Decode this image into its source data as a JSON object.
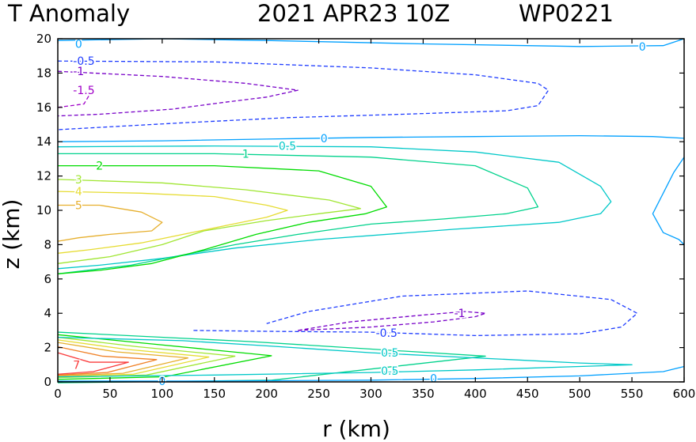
{
  "chart_data": {
    "type": "contour",
    "title": {
      "left": "T Anomaly",
      "date": "2021 APR23 10Z",
      "storm": "WP0221"
    },
    "xlabel": "r (km)",
    "ylabel": "z (km)",
    "xlim": [
      0,
      600
    ],
    "ylim": [
      0,
      20
    ],
    "xticks": [
      "0",
      "50",
      "100",
      "150",
      "200",
      "250",
      "300",
      "350",
      "400",
      "450",
      "500",
      "550",
      "600"
    ],
    "yticks": [
      "0",
      "2",
      "4",
      "6",
      "8",
      "10",
      "12",
      "14",
      "16",
      "18",
      "20"
    ],
    "levels": [
      {
        "value": -1.5,
        "label": "-1.5",
        "color": "#a000c8",
        "dashed": true
      },
      {
        "value": -1,
        "label": "-1",
        "color": "#7800c8",
        "dashed": true
      },
      {
        "value": -0.5,
        "label": "-0.5",
        "color": "#1e3cff",
        "dashed": true
      },
      {
        "value": 0,
        "label": "0",
        "color": "#00a0ff",
        "dashed": false
      },
      {
        "value": 0.5,
        "label": "0.5",
        "color": "#00c8c8",
        "dashed": false
      },
      {
        "value": 1,
        "label": "1",
        "color": "#00d28c",
        "dashed": false
      },
      {
        "value": 2,
        "label": "2",
        "color": "#00dc00",
        "dashed": false
      },
      {
        "value": 3,
        "label": "3",
        "color": "#a0e632",
        "dashed": false
      },
      {
        "value": 4,
        "label": "4",
        "color": "#e6dc32",
        "dashed": false
      },
      {
        "value": 5,
        "label": "5",
        "color": "#e6af2d",
        "dashed": false
      },
      {
        "value": 6,
        "label": "6",
        "color": "#f08228",
        "dashed": false
      },
      {
        "value": 7,
        "label": "7",
        "color": "#fa3c3c",
        "dashed": false
      }
    ],
    "contours": [
      {
        "level": "0",
        "points": [
          [
            0,
            19.9
          ],
          [
            100,
            20
          ],
          [
            200,
            19.9
          ],
          [
            350,
            19.7
          ],
          [
            500,
            19.55
          ],
          [
            580,
            19.6
          ],
          [
            600,
            20
          ]
        ]
      },
      {
        "level": "-0.5",
        "points": [
          [
            0,
            18.7
          ],
          [
            150,
            18.65
          ],
          [
            300,
            18.3
          ],
          [
            400,
            17.9
          ],
          [
            460,
            17.4
          ],
          [
            470,
            17.0
          ],
          [
            460,
            16.1
          ],
          [
            430,
            15.8
          ],
          [
            330,
            15.6
          ],
          [
            220,
            15.4
          ],
          [
            120,
            15.1
          ],
          [
            0,
            14.7
          ]
        ]
      },
      {
        "level": "-1",
        "points": [
          [
            0,
            18.1
          ],
          [
            100,
            17.8
          ],
          [
            180,
            17.4
          ],
          [
            230,
            17.0
          ],
          [
            200,
            16.6
          ],
          [
            160,
            16.3
          ],
          [
            110,
            15.9
          ],
          [
            40,
            15.6
          ],
          [
            0,
            15.5
          ]
        ]
      },
      {
        "level": "-1.5",
        "points": [
          [
            0,
            16.0
          ],
          [
            25,
            16.2
          ],
          [
            30,
            16.7
          ],
          [
            25,
            17.0
          ]
        ]
      },
      {
        "level": "0",
        "points": [
          [
            0,
            14.0
          ],
          [
            100,
            14.05
          ],
          [
            200,
            14.15
          ],
          [
            300,
            14.25
          ],
          [
            400,
            14.3
          ],
          [
            500,
            14.35
          ],
          [
            570,
            14.3
          ],
          [
            600,
            14.2
          ]
        ]
      },
      {
        "level": "0.5",
        "points": [
          [
            0,
            13.7
          ],
          [
            150,
            13.75
          ],
          [
            300,
            13.7
          ],
          [
            400,
            13.4
          ],
          [
            480,
            12.8
          ],
          [
            520,
            11.4
          ],
          [
            530,
            10.5
          ],
          [
            520,
            9.8
          ],
          [
            480,
            9.3
          ],
          [
            380,
            8.9
          ],
          [
            250,
            8.3
          ],
          [
            170,
            7.8
          ],
          [
            100,
            7.2
          ],
          [
            40,
            6.8
          ],
          [
            0,
            6.6
          ]
        ]
      },
      {
        "level": "1",
        "points": [
          [
            0,
            13.3
          ],
          [
            150,
            13.3
          ],
          [
            300,
            13.1
          ],
          [
            400,
            12.6
          ],
          [
            450,
            11.3
          ],
          [
            460,
            10.2
          ],
          [
            430,
            9.8
          ],
          [
            370,
            9.5
          ],
          [
            300,
            9.2
          ],
          [
            230,
            8.6
          ],
          [
            170,
            8.0
          ],
          [
            120,
            7.4
          ],
          [
            70,
            6.8
          ],
          [
            0,
            6.3
          ]
        ]
      },
      {
        "level": "2",
        "points": [
          [
            0,
            12.6
          ],
          [
            150,
            12.6
          ],
          [
            250,
            12.3
          ],
          [
            300,
            11.4
          ],
          [
            315,
            10.2
          ],
          [
            295,
            9.8
          ],
          [
            240,
            9.3
          ],
          [
            190,
            8.6
          ],
          [
            140,
            7.7
          ],
          [
            90,
            6.9
          ],
          [
            40,
            6.5
          ],
          [
            0,
            6.3
          ]
        ]
      },
      {
        "level": "3",
        "points": [
          [
            0,
            11.8
          ],
          [
            100,
            11.6
          ],
          [
            180,
            11.2
          ],
          [
            260,
            10.6
          ],
          [
            290,
            10.1
          ],
          [
            250,
            9.8
          ],
          [
            200,
            9.4
          ],
          [
            140,
            8.8
          ],
          [
            100,
            8.0
          ],
          [
            50,
            7.3
          ],
          [
            0,
            6.9
          ]
        ]
      },
      {
        "level": "4",
        "points": [
          [
            0,
            11.1
          ],
          [
            80,
            11.0
          ],
          [
            150,
            10.8
          ],
          [
            200,
            10.3
          ],
          [
            220,
            10.0
          ],
          [
            200,
            9.6
          ],
          [
            160,
            9.1
          ],
          [
            120,
            8.6
          ],
          [
            80,
            8.1
          ],
          [
            30,
            7.7
          ],
          [
            0,
            7.5
          ]
        ]
      },
      {
        "level": "5",
        "points": [
          [
            0,
            10.3
          ],
          [
            40,
            10.3
          ],
          [
            80,
            9.9
          ],
          [
            100,
            9.3
          ],
          [
            90,
            8.8
          ],
          [
            50,
            8.6
          ],
          [
            20,
            8.4
          ],
          [
            0,
            8.2
          ]
        ]
      },
      {
        "level": "0",
        "points": [
          [
            600,
            13.1
          ],
          [
            590,
            12.2
          ],
          [
            580,
            11.0
          ],
          [
            570,
            9.8
          ],
          [
            580,
            8.7
          ],
          [
            595,
            8.3
          ],
          [
            600,
            8.0
          ]
        ]
      },
      {
        "level": "0",
        "points": [
          [
            0,
            0.05
          ],
          [
            150,
            0.05
          ],
          [
            300,
            0.1
          ],
          [
            400,
            0.2
          ],
          [
            500,
            0.35
          ],
          [
            580,
            0.6
          ],
          [
            600,
            0.9
          ]
        ]
      },
      {
        "level": "0.5",
        "points": [
          [
            0,
            0.3
          ],
          [
            150,
            0.4
          ],
          [
            300,
            0.55
          ],
          [
            400,
            0.7
          ],
          [
            500,
            0.9
          ],
          [
            550,
            1.0
          ],
          [
            500,
            1.1
          ],
          [
            400,
            1.4
          ],
          [
            300,
            1.7
          ],
          [
            200,
            2.1
          ],
          [
            120,
            2.4
          ],
          [
            0,
            2.6
          ]
        ]
      },
      {
        "level": "-0.5",
        "points": [
          [
            130,
            3.0
          ],
          [
            200,
            2.95
          ],
          [
            300,
            2.9
          ],
          [
            400,
            2.7
          ],
          [
            500,
            2.8
          ],
          [
            540,
            3.2
          ],
          [
            555,
            4.0
          ],
          [
            530,
            4.8
          ],
          [
            450,
            5.3
          ],
          [
            330,
            5.0
          ],
          [
            240,
            4.1
          ],
          [
            200,
            3.4
          ]
        ]
      },
      {
        "level": "-1",
        "points": [
          [
            230,
            3.0
          ],
          [
            300,
            3.2
          ],
          [
            360,
            3.5
          ],
          [
            400,
            3.8
          ],
          [
            410,
            4.0
          ],
          [
            390,
            4.1
          ],
          [
            350,
            3.9
          ],
          [
            280,
            3.5
          ],
          [
            230,
            3.0
          ]
        ]
      }
    ],
    "contour_labels": [
      {
        "text": "0",
        "level": 0,
        "r": 20,
        "z": 19.7
      },
      {
        "text": "-0.5",
        "level": -0.5,
        "r": 25,
        "z": 18.7
      },
      {
        "text": "-1",
        "level": -1,
        "r": 20,
        "z": 18.1
      },
      {
        "text": "-1.5",
        "level": -1.5,
        "r": 25,
        "z": 17.0
      },
      {
        "text": "0",
        "level": 0,
        "r": 560,
        "z": 19.55
      },
      {
        "text": "0",
        "level": 0,
        "r": 255,
        "z": 14.2
      },
      {
        "text": "0.5",
        "level": 0.5,
        "r": 220,
        "z": 13.75
      },
      {
        "text": "1",
        "level": 1,
        "r": 180,
        "z": 13.3
      },
      {
        "text": "2",
        "level": 2,
        "r": 40,
        "z": 12.6
      },
      {
        "text": "3",
        "level": 3,
        "r": 20,
        "z": 11.8
      },
      {
        "text": "4",
        "level": 4,
        "r": 20,
        "z": 11.1
      },
      {
        "text": "5",
        "level": 5,
        "r": 20,
        "z": 10.3
      },
      {
        "text": "-1",
        "level": -1,
        "r": 385,
        "z": 4.0
      },
      {
        "text": "-0.5",
        "level": -0.5,
        "r": 315,
        "z": 2.85
      },
      {
        "text": "0.5",
        "level": 0.5,
        "r": 318,
        "z": 1.7
      },
      {
        "text": "0.5",
        "level": 0.5,
        "r": 318,
        "z": 0.65
      },
      {
        "text": "0",
        "level": 0,
        "r": 360,
        "z": 0.2
      },
      {
        "text": "0",
        "level": 0,
        "r": 100,
        "z": 0.05
      },
      {
        "text": "7",
        "level": 7,
        "r": 18,
        "z": 1.0
      }
    ]
  },
  "colors": {
    "frame": "#000000",
    "background": "#ffffff"
  }
}
